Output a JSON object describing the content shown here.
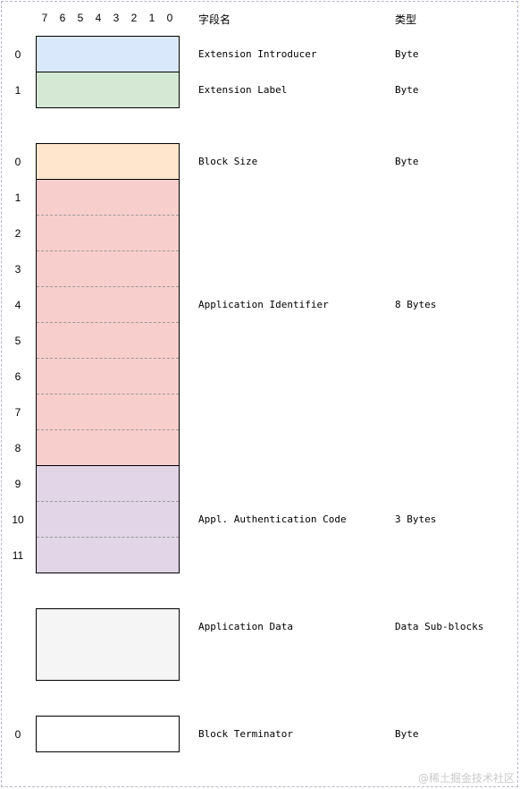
{
  "header": {
    "bits": [
      "7",
      "6",
      "5",
      "4",
      "3",
      "2",
      "1",
      "0"
    ],
    "field_name_label": "字段名",
    "type_label": "类型"
  },
  "rows": [
    {
      "index": "0",
      "field": "Extension Introducer",
      "type": "Byte",
      "color": "#dae8fc"
    },
    {
      "index": "1",
      "field": "Extension Label",
      "type": "Byte",
      "color": "#d5e8d4"
    },
    {
      "index": "0",
      "field": "Block Size",
      "type": "Byte",
      "color": "#ffe6cc"
    },
    {
      "indices": [
        "1",
        "2",
        "3",
        "4",
        "5",
        "6",
        "7",
        "8"
      ],
      "field": "Application Identifier",
      "type": "8 Bytes",
      "color": "#f8cecc"
    },
    {
      "indices": [
        "9",
        "10",
        "11"
      ],
      "field": "Appl. Authentication Code",
      "type": "3 Bytes",
      "color": "#e1d5e7"
    },
    {
      "field": "Application Data",
      "type": "Data Sub-blocks",
      "color": "#f5f5f5"
    },
    {
      "index": "0",
      "field": "Block Terminator",
      "type": "Byte",
      "color": "#ffffff"
    }
  ],
  "watermark": "@稀土掘金技术社区"
}
